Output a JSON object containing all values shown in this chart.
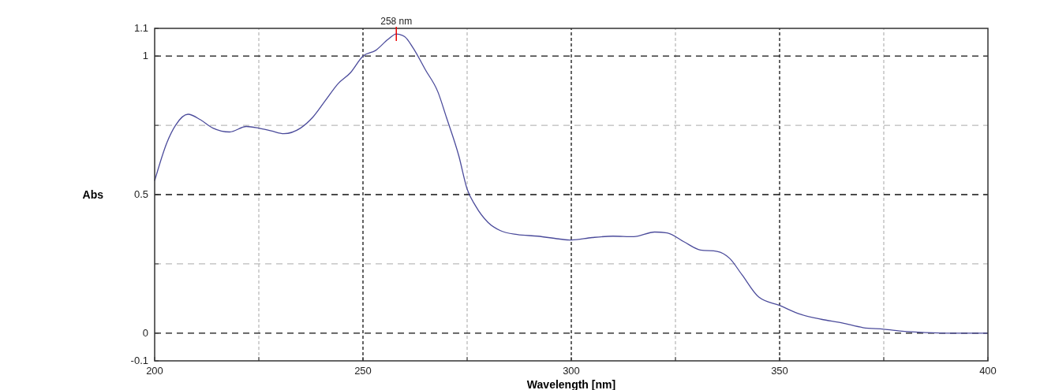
{
  "chart_data": {
    "type": "line",
    "xlabel": "Wavelength [nm]",
    "ylabel": "Abs",
    "x": [
      200,
      203,
      205,
      208,
      211,
      214,
      218,
      222,
      225,
      228,
      231,
      235,
      238,
      241,
      244,
      247,
      250,
      253,
      256,
      258,
      260,
      262,
      265,
      268,
      270,
      273,
      275,
      277,
      280,
      283,
      287,
      292,
      297,
      300,
      305,
      310,
      315,
      320,
      323,
      327,
      331,
      335,
      338,
      341,
      345,
      350,
      355,
      360,
      365,
      370,
      375,
      380,
      390,
      400
    ],
    "series": [
      {
        "color": "#4b4b9b",
        "values": [
          0.55,
          0.69,
          0.75,
          0.79,
          0.77,
          0.74,
          0.726,
          0.746,
          0.74,
          0.73,
          0.72,
          0.74,
          0.78,
          0.84,
          0.9,
          0.94,
          1.0,
          1.02,
          1.06,
          1.08,
          1.07,
          1.03,
          0.95,
          0.87,
          0.78,
          0.64,
          0.52,
          0.46,
          0.4,
          0.37,
          0.356,
          0.35,
          0.34,
          0.336,
          0.345,
          0.35,
          0.348,
          0.365,
          0.362,
          0.33,
          0.3,
          0.295,
          0.27,
          0.21,
          0.13,
          0.1,
          0.068,
          0.05,
          0.037,
          0.02,
          0.014,
          0.006,
          0.0,
          0.0
        ]
      }
    ],
    "xlim": [
      200,
      400
    ],
    "xticks": [
      200,
      {
        "value": 225,
        "label": null
      },
      250,
      {
        "value": 275,
        "label": null
      },
      300,
      {
        "value": 325,
        "label": null
      },
      350,
      {
        "value": 375,
        "label": null
      },
      400
    ],
    "ylim": [
      -0.1,
      1.1
    ],
    "yticks": [
      -0.1,
      0,
      {
        "value": 0.25,
        "label": null
      },
      0.5,
      {
        "value": 0.75,
        "label": null
      },
      1,
      1.1
    ],
    "grid": true,
    "line_style": "solid",
    "marker": "none",
    "annotations": [
      {
        "text": "258 nm",
        "x": 258,
        "y": 1.08
      }
    ]
  }
}
